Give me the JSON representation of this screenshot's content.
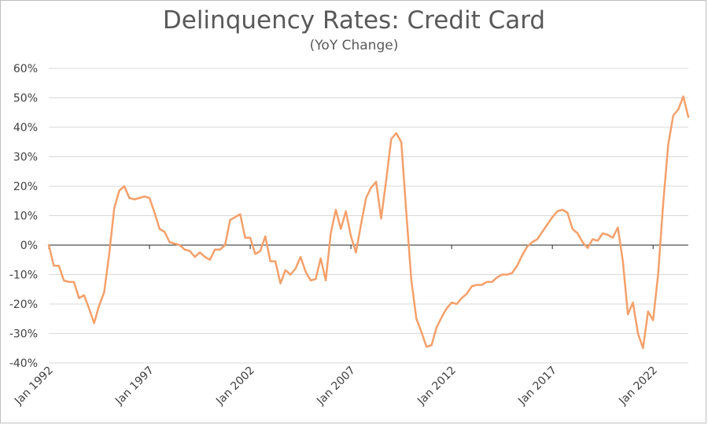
{
  "chart_data": {
    "type": "line",
    "title": "Delinquency Rates: Credit Card",
    "subtitle": "(YoY Change)",
    "xlabel": "",
    "ylabel": "",
    "ylim": [
      -40,
      60
    ],
    "y_ticks": [
      "60%",
      "50%",
      "40%",
      "30%",
      "20%",
      "10%",
      "0%",
      "-10%",
      "-20%",
      "-30%",
      "-40%"
    ],
    "x_tick_labels": [
      "Jan 1992",
      "Jan 1997",
      "Jan 2002",
      "Jan 2007",
      "Jan 2012",
      "Jan 2017",
      "Jan 2022"
    ],
    "x_tick_dates": [
      1992.0,
      1997.0,
      2002.0,
      2007.0,
      2012.0,
      2017.0,
      2022.0
    ],
    "grid": true,
    "series": [
      {
        "color": "#F4A06B",
        "points": [
          [
            1992.0,
            0
          ],
          [
            1992.25,
            -7
          ],
          [
            1992.5,
            -7
          ],
          [
            1992.75,
            -12
          ],
          [
            1993.0,
            -12.5
          ],
          [
            1993.25,
            -12.5
          ],
          [
            1993.5,
            -18
          ],
          [
            1993.75,
            -17
          ],
          [
            1994.0,
            -21.5
          ],
          [
            1994.25,
            -26.5
          ],
          [
            1994.5,
            -20.5
          ],
          [
            1994.75,
            -16
          ],
          [
            1995.0,
            -3
          ],
          [
            1995.25,
            12.5
          ],
          [
            1995.5,
            18.5
          ],
          [
            1995.75,
            20
          ],
          [
            1996.0,
            16
          ],
          [
            1996.25,
            15.5
          ],
          [
            1996.5,
            16
          ],
          [
            1996.75,
            16.5
          ],
          [
            1997.0,
            16
          ],
          [
            1997.25,
            11
          ],
          [
            1997.5,
            5.5
          ],
          [
            1997.75,
            4.5
          ],
          [
            1998.0,
            1
          ],
          [
            1998.25,
            0.5
          ],
          [
            1998.5,
            0
          ],
          [
            1998.75,
            -1.5
          ],
          [
            1999.0,
            -2
          ],
          [
            1999.25,
            -4
          ],
          [
            1999.5,
            -2.5
          ],
          [
            1999.75,
            -4
          ],
          [
            2000.0,
            -5
          ],
          [
            2000.25,
            -1.5
          ],
          [
            2000.5,
            -1.5
          ],
          [
            2000.75,
            0
          ],
          [
            2001.0,
            8.5
          ],
          [
            2001.25,
            9.5
          ],
          [
            2001.5,
            10.5
          ],
          [
            2001.75,
            2.5
          ],
          [
            2002.0,
            2.5
          ],
          [
            2002.25,
            -3
          ],
          [
            2002.5,
            -2
          ],
          [
            2002.75,
            3
          ],
          [
            2003.0,
            -5.5
          ],
          [
            2003.25,
            -5.5
          ],
          [
            2003.5,
            -13
          ],
          [
            2003.75,
            -8.5
          ],
          [
            2004.0,
            -10
          ],
          [
            2004.25,
            -8
          ],
          [
            2004.5,
            -4
          ],
          [
            2004.75,
            -9
          ],
          [
            2005.0,
            -12
          ],
          [
            2005.25,
            -11.5
          ],
          [
            2005.5,
            -4.5
          ],
          [
            2005.75,
            -12
          ],
          [
            2006.0,
            4
          ],
          [
            2006.25,
            12
          ],
          [
            2006.5,
            5.5
          ],
          [
            2006.75,
            11.5
          ],
          [
            2007.0,
            3
          ],
          [
            2007.25,
            -2.5
          ],
          [
            2007.5,
            7
          ],
          [
            2007.75,
            16
          ],
          [
            2008.0,
            19.5
          ],
          [
            2008.25,
            21.5
          ],
          [
            2008.5,
            9
          ],
          [
            2008.75,
            22
          ],
          [
            2009.0,
            36
          ],
          [
            2009.25,
            38
          ],
          [
            2009.5,
            35
          ],
          [
            2009.75,
            11
          ],
          [
            2010.0,
            -12
          ],
          [
            2010.25,
            -25
          ],
          [
            2010.5,
            -29.5
          ],
          [
            2010.75,
            -34.5
          ],
          [
            2011.0,
            -34
          ],
          [
            2011.25,
            -28
          ],
          [
            2011.5,
            -24.5
          ],
          [
            2011.75,
            -21.5
          ],
          [
            2012.0,
            -19.5
          ],
          [
            2012.25,
            -20
          ],
          [
            2012.5,
            -18
          ],
          [
            2012.75,
            -16.5
          ],
          [
            2013.0,
            -14
          ],
          [
            2013.25,
            -13.5
          ],
          [
            2013.5,
            -13.5
          ],
          [
            2013.75,
            -12.5
          ],
          [
            2014.0,
            -12.5
          ],
          [
            2014.25,
            -11
          ],
          [
            2014.5,
            -10
          ],
          [
            2014.75,
            -10
          ],
          [
            2015.0,
            -9.5
          ],
          [
            2015.25,
            -7
          ],
          [
            2015.5,
            -3.5
          ],
          [
            2015.75,
            -0.5
          ],
          [
            2016.0,
            1
          ],
          [
            2016.25,
            2
          ],
          [
            2016.5,
            4.5
          ],
          [
            2016.75,
            7
          ],
          [
            2017.0,
            9.5
          ],
          [
            2017.25,
            11.5
          ],
          [
            2017.5,
            12
          ],
          [
            2017.75,
            11
          ],
          [
            2018.0,
            5.5
          ],
          [
            2018.25,
            4
          ],
          [
            2018.5,
            1
          ],
          [
            2018.75,
            -1
          ],
          [
            2019.0,
            2
          ],
          [
            2019.25,
            1.5
          ],
          [
            2019.5,
            4
          ],
          [
            2019.75,
            3.5
          ],
          [
            2020.0,
            2.5
          ],
          [
            2020.25,
            6
          ],
          [
            2020.5,
            -5.5
          ],
          [
            2020.75,
            -23.5
          ],
          [
            2021.0,
            -19.5
          ],
          [
            2021.25,
            -30
          ],
          [
            2021.5,
            -35
          ],
          [
            2021.75,
            -22.5
          ],
          [
            2022.0,
            -25.5
          ],
          [
            2022.25,
            -10
          ],
          [
            2022.5,
            14
          ],
          [
            2022.75,
            34
          ],
          [
            2023.0,
            44
          ],
          [
            2023.25,
            46
          ],
          [
            2023.5,
            50.5
          ],
          [
            2023.75,
            43.5
          ]
        ]
      }
    ]
  }
}
